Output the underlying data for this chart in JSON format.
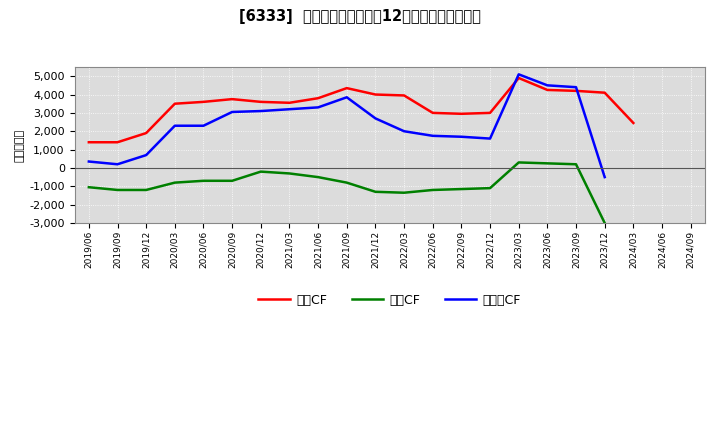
{
  "title": "[6333]  キャッシュフローの12か月移動合計の推移",
  "ylabel": "（百万円）",
  "background_color": "#ffffff",
  "plot_bg_color": "#dcdcdc",
  "ylim": [
    -3000,
    5500
  ],
  "yticks": [
    -3000,
    -2000,
    -1000,
    0,
    1000,
    2000,
    3000,
    4000,
    5000
  ],
  "dates": [
    "2019/06",
    "2019/09",
    "2019/12",
    "2020/03",
    "2020/06",
    "2020/09",
    "2020/12",
    "2021/03",
    "2021/06",
    "2021/09",
    "2021/12",
    "2022/03",
    "2022/06",
    "2022/09",
    "2022/12",
    "2023/03",
    "2023/06",
    "2023/09",
    "2023/12",
    "2024/03",
    "2024/06",
    "2024/09"
  ],
  "eigyo_cf": [
    1400,
    1400,
    1900,
    3500,
    3600,
    3750,
    3600,
    3550,
    3800,
    4350,
    4000,
    3950,
    3000,
    2950,
    3000,
    4900,
    4250,
    4200,
    4100,
    2450,
    null,
    null
  ],
  "toshi_cf": [
    -1050,
    -1200,
    -1200,
    -800,
    -700,
    -700,
    -200,
    -300,
    -500,
    -800,
    -1300,
    -1350,
    -1200,
    -1150,
    -1100,
    300,
    250,
    200,
    -3000,
    null,
    null,
    null
  ],
  "free_cf": [
    350,
    200,
    700,
    2300,
    2300,
    3050,
    3100,
    3200,
    3300,
    3850,
    2700,
    2000,
    1750,
    1700,
    1600,
    5100,
    4500,
    4400,
    -500,
    null,
    null,
    null
  ],
  "eigyo_color": "#ff0000",
  "toshi_color": "#008000",
  "free_color": "#0000ff",
  "line_width": 1.8,
  "legend_labels": [
    "営業CF",
    "投資CF",
    "フリーCF"
  ]
}
